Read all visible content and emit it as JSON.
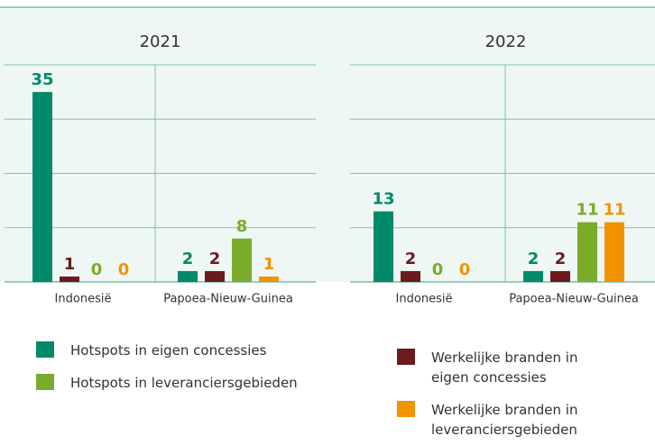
{
  "chart_data": [
    {
      "type": "bar",
      "title": "2021",
      "categories": [
        "Indonesië",
        "Papoea-Nieuw-Guinea"
      ],
      "series": [
        {
          "name": "Hotspots in eigen concessies",
          "color": "#00896b",
          "values": [
            35,
            2
          ]
        },
        {
          "name": "Werkelijke branden in eigen concessies",
          "color": "#6b1a1e",
          "values": [
            1,
            2
          ]
        },
        {
          "name": "Hotspots in leveranciersgebieden",
          "color": "#7aab2a",
          "values": [
            0,
            8
          ]
        },
        {
          "name": "Werkelijke branden in leveranciersgebieden",
          "color": "#f39200",
          "values": [
            0,
            1
          ]
        }
      ],
      "ylim": [
        0,
        40
      ],
      "yticks": [
        0,
        10,
        20,
        30,
        40
      ],
      "grid": true
    },
    {
      "type": "bar",
      "title": "2022",
      "categories": [
        "Indonesië",
        "Papoea-Nieuw-Guinea"
      ],
      "series": [
        {
          "color": "#00896b",
          "values": [
            13,
            2
          ]
        },
        {
          "color": "#6b1a1e",
          "values": [
            2,
            2
          ]
        },
        {
          "color": "#7aab2a",
          "values": [
            0,
            11
          ]
        },
        {
          "color": "#f39200",
          "values": [
            0,
            11
          ]
        }
      ],
      "ylim": [
        0,
        40
      ],
      "yticks": [
        0,
        10,
        20,
        30,
        40
      ],
      "grid": true
    }
  ]
}
